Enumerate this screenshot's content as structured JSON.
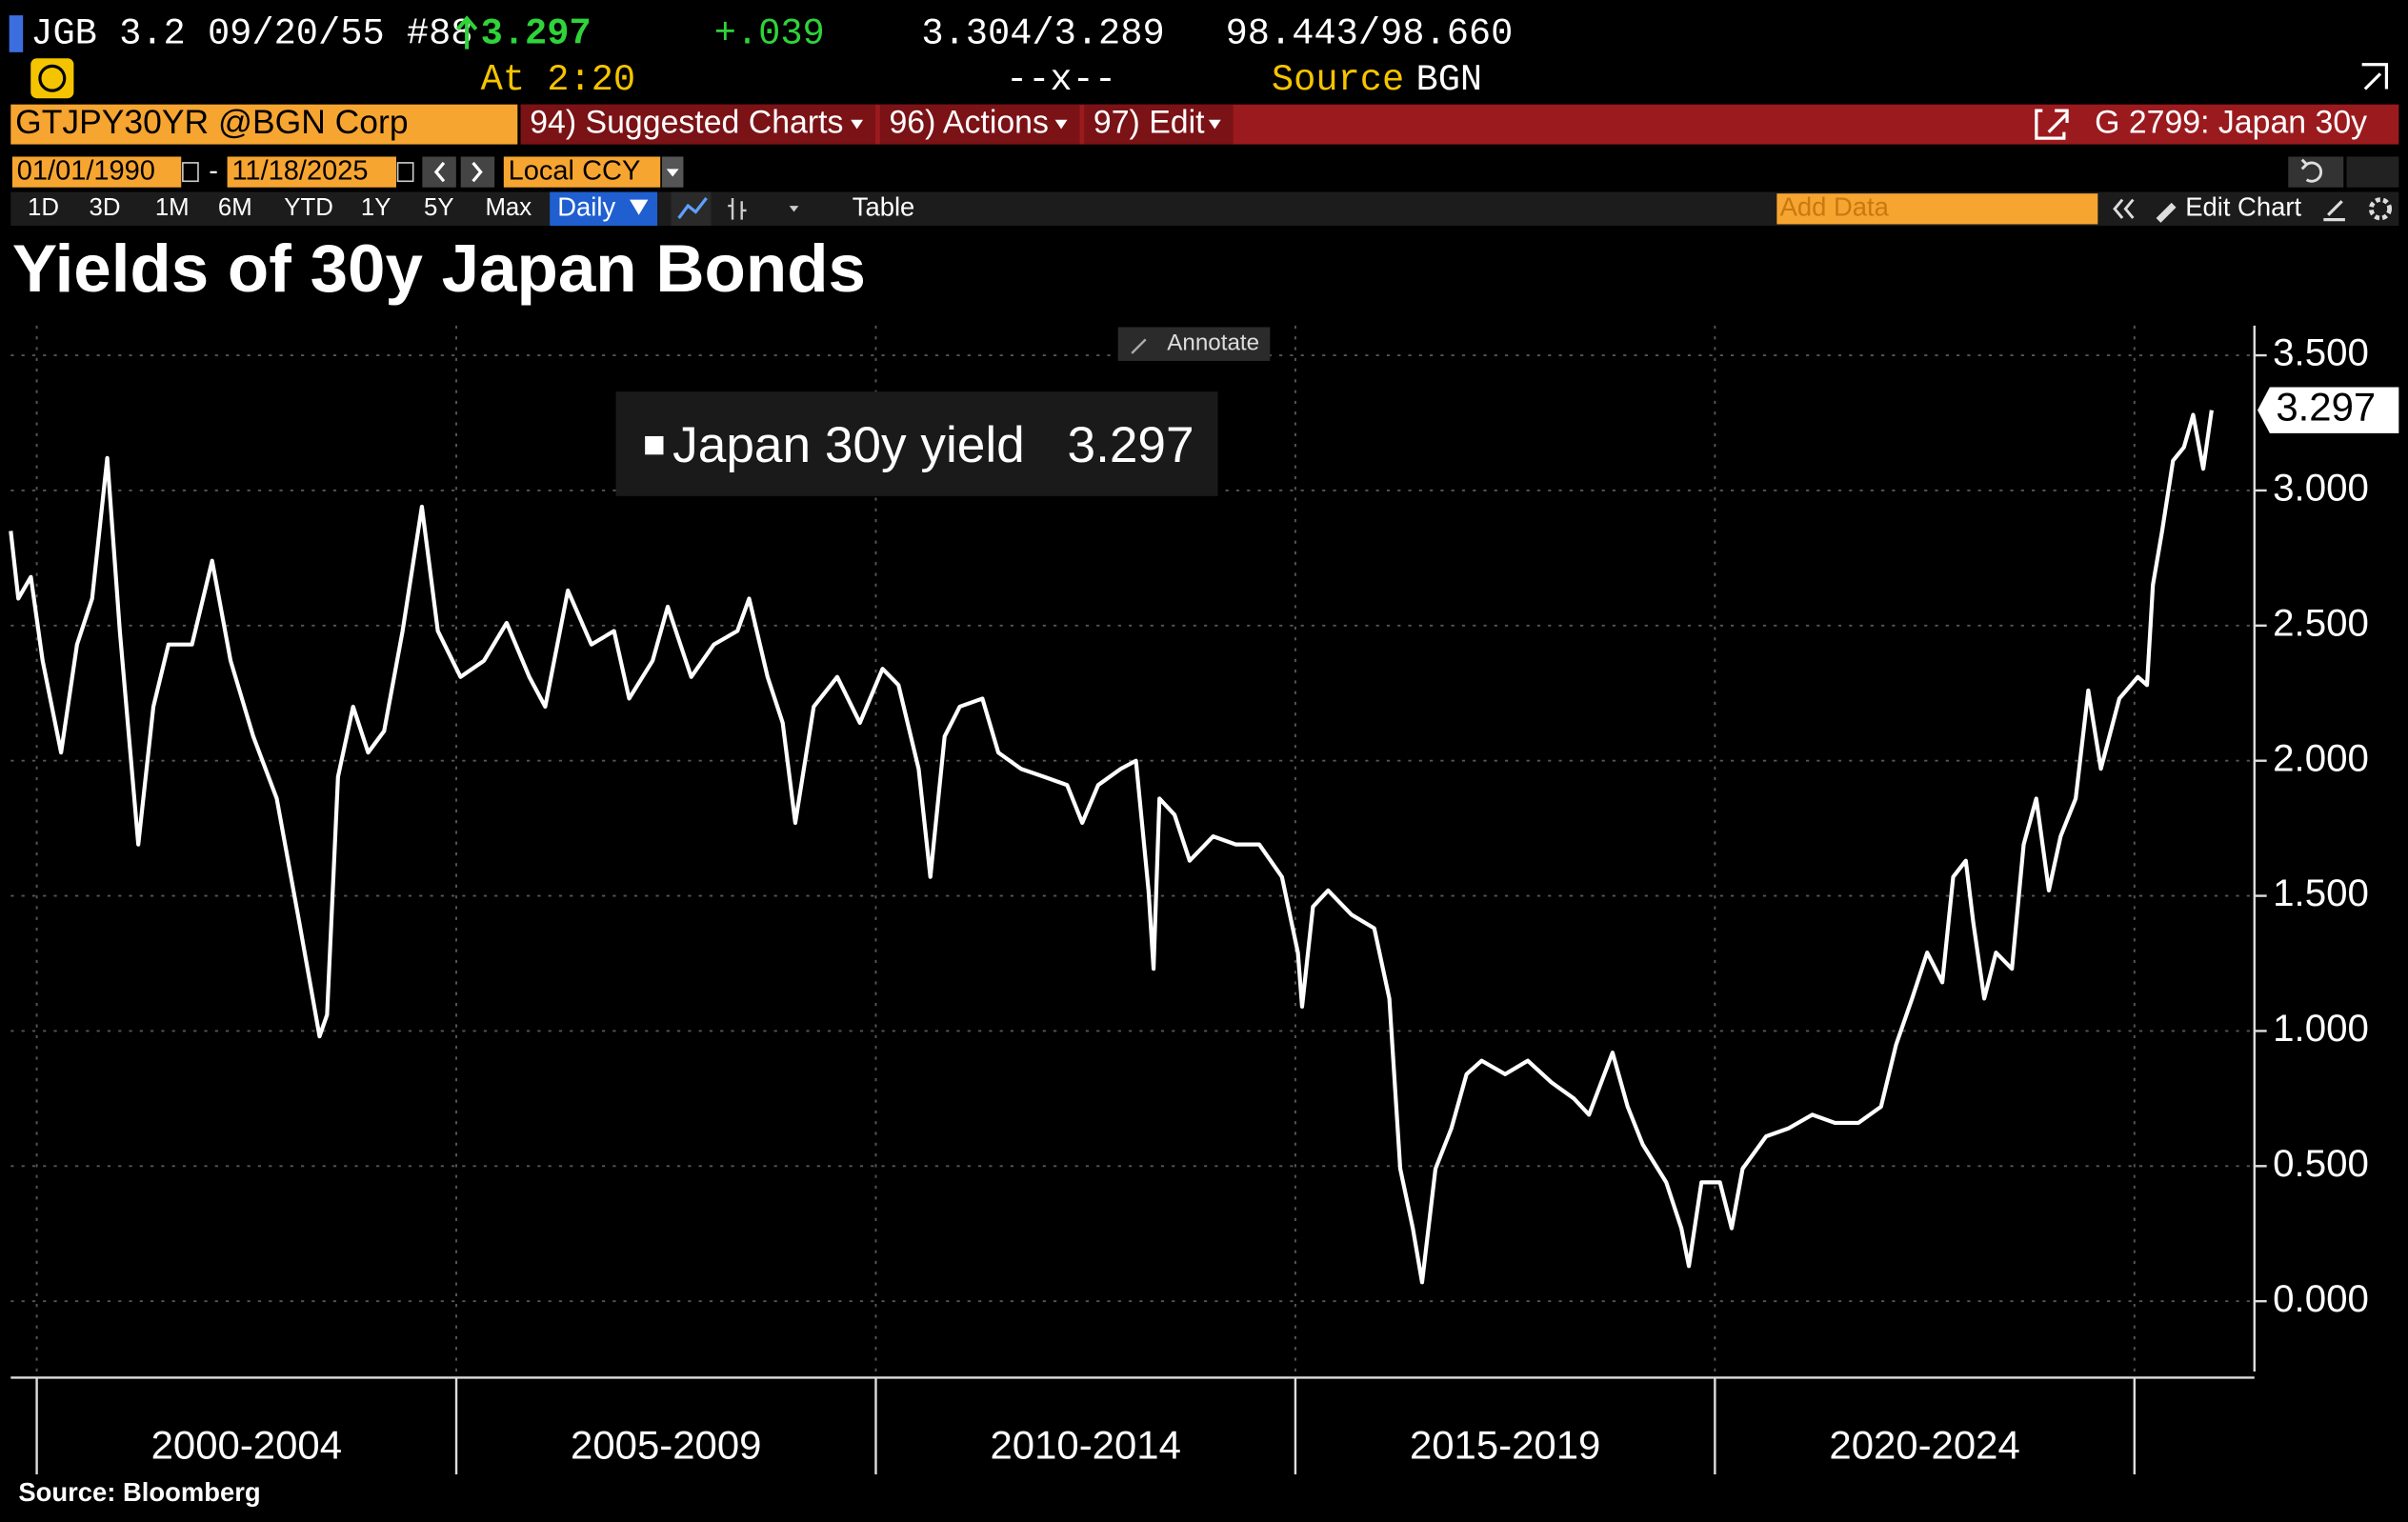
{
  "header": {
    "security": "JGB 3.2 09/20/55 #88",
    "last_price": "3.297",
    "change": "+.039",
    "bid_ask": "3.304/3.289",
    "price_bid_ask": "98.443/98.660",
    "time": "At 2:20",
    "spread": "--x--",
    "source_label": "Source",
    "source_value": "BGN"
  },
  "toolbar": {
    "ticker": "GTJPY30YR @BGN Corp",
    "menus": [
      "94) Suggested Charts",
      "96) Actions",
      "97) Edit"
    ],
    "function": "G 2799: Japan 30y",
    "start_date": "01/01/1990",
    "date_sep": "-",
    "end_date": "11/18/2025",
    "currency": "Local CCY",
    "ranges": [
      "1D",
      "3D",
      "1M",
      "6M",
      "YTD",
      "1Y",
      "5Y",
      "Max"
    ],
    "frequency": "Daily",
    "table": "Table",
    "add_data": "Add Data",
    "edit_chart": "Edit Chart",
    "annotate": "Annotate"
  },
  "chart_data": {
    "type": "line",
    "title": "Yields of 30y Japan Bonds",
    "source": "Source: Bloomberg",
    "x": [
      1999.69,
      1999.78,
      1999.93,
      2000.07,
      2000.29,
      2000.48,
      2000.66,
      2000.84,
      2000.99,
      2001.21,
      2001.39,
      2001.57,
      2001.85,
      2002.09,
      2002.31,
      2002.58,
      2002.86,
      2003.13,
      2003.37,
      2003.46,
      2003.59,
      2003.77,
      2003.95,
      2004.14,
      2004.36,
      2004.59,
      2004.78,
      2005.05,
      2005.33,
      2005.6,
      2005.87,
      2006.06,
      2006.33,
      2006.61,
      2006.88,
      2007.06,
      2007.34,
      2007.52,
      2007.8,
      2008.07,
      2008.35,
      2008.49,
      2008.71,
      2008.89,
      2009.04,
      2009.26,
      2009.54,
      2009.81,
      2010.08,
      2010.27,
      2010.51,
      2010.65,
      2010.82,
      2011.0,
      2011.27,
      2011.46,
      2011.73,
      2012.01,
      2012.28,
      2012.46,
      2012.65,
      2012.92,
      2013.1,
      2013.25,
      2013.31,
      2013.38,
      2013.56,
      2013.74,
      2014.02,
      2014.29,
      2014.57,
      2014.84,
      2015.03,
      2015.08,
      2015.21,
      2015.39,
      2015.67,
      2015.94,
      2016.12,
      2016.25,
      2016.4,
      2016.51,
      2016.67,
      2016.86,
      2017.04,
      2017.22,
      2017.5,
      2017.77,
      2018.05,
      2018.32,
      2018.5,
      2018.78,
      2018.96,
      2019.14,
      2019.42,
      2019.6,
      2019.69,
      2019.84,
      2020.06,
      2020.2,
      2020.33,
      2020.61,
      2020.88,
      2021.16,
      2021.43,
      2021.71,
      2021.98,
      2022.16,
      2022.35,
      2022.53,
      2022.71,
      2022.84,
      2022.99,
      2023.08,
      2023.21,
      2023.35,
      2023.54,
      2023.68,
      2023.83,
      2023.98,
      2024.12,
      2024.3,
      2024.45,
      2024.6,
      2024.82,
      2025.04,
      2025.15,
      2025.22,
      2025.33,
      2025.46,
      2025.59,
      2025.7,
      2025.82,
      2025.92
    ],
    "series": [
      {
        "name": "Japan 30y yield",
        "color": "#ffffff",
        "last_label": "3.297",
        "values": [
          2.85,
          2.6,
          2.68,
          2.37,
          2.03,
          2.43,
          2.6,
          3.12,
          2.48,
          1.69,
          2.2,
          2.43,
          2.43,
          2.74,
          2.37,
          2.09,
          1.86,
          1.4,
          0.98,
          1.06,
          1.94,
          2.2,
          2.03,
          2.11,
          2.48,
          2.94,
          2.48,
          2.31,
          2.37,
          2.51,
          2.31,
          2.2,
          2.63,
          2.43,
          2.48,
          2.23,
          2.37,
          2.57,
          2.31,
          2.43,
          2.48,
          2.6,
          2.31,
          2.14,
          1.77,
          2.2,
          2.31,
          2.14,
          2.34,
          2.28,
          1.97,
          1.57,
          2.09,
          2.2,
          2.23,
          2.03,
          1.97,
          1.94,
          1.91,
          1.77,
          1.91,
          1.97,
          2.0,
          1.52,
          1.23,
          1.86,
          1.8,
          1.63,
          1.72,
          1.69,
          1.69,
          1.57,
          1.29,
          1.09,
          1.46,
          1.52,
          1.43,
          1.38,
          1.12,
          0.49,
          0.27,
          0.07,
          0.49,
          0.64,
          0.84,
          0.89,
          0.84,
          0.89,
          0.81,
          0.75,
          0.69,
          0.92,
          0.72,
          0.58,
          0.44,
          0.27,
          0.13,
          0.44,
          0.44,
          0.27,
          0.49,
          0.61,
          0.64,
          0.69,
          0.66,
          0.66,
          0.72,
          0.95,
          1.12,
          1.29,
          1.18,
          1.57,
          1.63,
          1.4,
          1.12,
          1.29,
          1.23,
          1.69,
          1.86,
          1.52,
          1.72,
          1.86,
          2.26,
          1.97,
          2.23,
          2.31,
          2.28,
          2.65,
          2.85,
          3.11,
          3.16,
          3.28,
          3.08,
          3.297
        ]
      }
    ],
    "xlim": [
      1999.69,
      2026.43
    ],
    "xticks": [
      2000,
      2005,
      2010,
      2015,
      2020,
      2025
    ],
    "x_period_labels": [
      "2000-2004",
      "2005-2009",
      "2010-2014",
      "2015-2019",
      "2020-2024"
    ],
    "ylim": [
      -0.26,
      3.61
    ],
    "yticks": [
      {
        "value": 0,
        "label": "0.000"
      },
      {
        "value": 0.5,
        "label": "0.500"
      },
      {
        "value": 1,
        "label": "1.000"
      },
      {
        "value": 1.5,
        "label": "1.500"
      },
      {
        "value": 2,
        "label": "2.000"
      },
      {
        "value": 2.5,
        "label": "2.500"
      },
      {
        "value": 3,
        "label": "3.000"
      },
      {
        "value": 3.5,
        "label": "3.500"
      }
    ],
    "grid": true
  }
}
